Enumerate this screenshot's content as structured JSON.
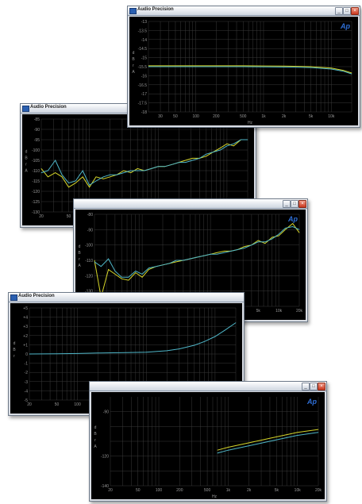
{
  "colors": {
    "background": "#000000",
    "grid": "#3a3a3a",
    "tick_text": "#9a9a9a",
    "series_a": "#d6d62a",
    "series_b": "#4fb6c8",
    "logo": "#2f6fd6"
  },
  "windows": [
    {
      "title": "Audio Precision",
      "show_logo": true,
      "chart_data": {
        "type": "line",
        "ylabel": "d B r A",
        "xlabel": "Hz",
        "xlim": [
          20,
          20000
        ],
        "ylim": [
          -18,
          -13
        ],
        "yticks": [
          -13,
          -13.5,
          -14,
          -14.5,
          -15,
          -15.5,
          -16,
          -16.5,
          -17,
          -17.5,
          -18
        ],
        "ytick_labels": [
          "-13",
          "-13.5",
          "-14",
          "-14.5",
          "-15",
          "-15.5",
          "-16",
          "-16.5",
          "-17",
          "-17.5",
          "-18"
        ],
        "xticks": [
          30,
          50,
          100,
          200,
          500,
          1000,
          2000,
          5000,
          10000
        ],
        "xtick_labels": [
          "30",
          "50",
          "100",
          "200",
          "500",
          "1k",
          "2k",
          "5k",
          "10k"
        ],
        "grid": true,
        "series": [
          {
            "color": "#d6d62a",
            "x": [
              20,
              50,
              100,
              200,
              500,
              1000,
              2000,
              5000,
              10000,
              15000,
              20000
            ],
            "y": [
              -15.45,
              -15.45,
              -15.45,
              -15.45,
              -15.45,
              -15.46,
              -15.47,
              -15.5,
              -15.58,
              -15.7,
              -15.85
            ]
          },
          {
            "color": "#4fb6c8",
            "x": [
              20,
              50,
              100,
              200,
              500,
              1000,
              2000,
              5000,
              10000,
              15000,
              20000
            ],
            "y": [
              -15.5,
              -15.5,
              -15.5,
              -15.5,
              -15.5,
              -15.51,
              -15.52,
              -15.55,
              -15.63,
              -15.75,
              -15.9
            ]
          }
        ]
      }
    },
    {
      "title": "Audio Precision",
      "show_logo": false,
      "chart_data": {
        "type": "line",
        "ylabel": "d B r A",
        "xlabel": "Hz",
        "xlim": [
          20,
          20000
        ],
        "ylim": [
          -130,
          -85
        ],
        "yticks": [
          -85,
          -90,
          -95,
          -100,
          -105,
          -110,
          -115,
          -120,
          -125,
          -130
        ],
        "ytick_labels": [
          "-85",
          "-90",
          "-95",
          "-100",
          "-105",
          "-110",
          "-115",
          "-120",
          "-125",
          "-130"
        ],
        "xticks": [
          20,
          50,
          100,
          200,
          500,
          1000,
          2000,
          5000,
          10000,
          20000
        ],
        "xtick_labels": [
          "20",
          "50",
          "100",
          "200",
          "500",
          "1k",
          "2k",
          "5k",
          "10k",
          "20k"
        ],
        "grid": true,
        "series": [
          {
            "color": "#d6d62a",
            "x": [
              20,
              25,
              32,
              40,
              50,
              63,
              80,
              100,
              125,
              160,
              200,
              250,
              315,
              400,
              500,
              630,
              800,
              1000,
              1250,
              1600,
              2000,
              2500,
              3150,
              4000,
              5000,
              6300,
              8000,
              10000,
              12500,
              16000,
              20000
            ],
            "y": [
              -109,
              -113,
              -111,
              -113,
              -118,
              -116,
              -113,
              -118,
              -113,
              -114,
              -113,
              -112,
              -110,
              -111,
              -109,
              -110,
              -109,
              -108,
              -108,
              -107,
              -106,
              -105,
              -104,
              -104,
              -103,
              -101,
              -99,
              -97,
              -98,
              -95,
              -95
            ]
          },
          {
            "color": "#4fb6c8",
            "x": [
              20,
              25,
              32,
              40,
              50,
              63,
              80,
              100,
              125,
              160,
              200,
              250,
              315,
              400,
              500,
              630,
              800,
              1000,
              1250,
              1600,
              2000,
              2500,
              3150,
              4000,
              5000,
              6300,
              8000,
              10000,
              12500,
              16000,
              20000
            ],
            "y": [
              -111,
              -110,
              -105,
              -112,
              -116,
              -115,
              -110,
              -117,
              -115,
              -113,
              -112,
              -112,
              -111,
              -110,
              -110,
              -110,
              -109,
              -108,
              -108,
              -107,
              -106,
              -106,
              -105,
              -104,
              -102,
              -101,
              -100,
              -98,
              -97,
              -95,
              -95
            ]
          }
        ]
      }
    },
    {
      "title": "",
      "show_logo": true,
      "chart_data": {
        "type": "line",
        "ylabel": "d B r A",
        "xlabel": "Hz",
        "xlim": [
          20,
          20000
        ],
        "ylim": [
          -140,
          -80
        ],
        "yticks": [
          -80,
          -90,
          -100,
          -110,
          -120,
          -130,
          -140
        ],
        "ytick_labels": [
          "-80",
          "-90",
          "-100",
          "-110",
          "-120",
          "-130",
          "-140"
        ],
        "xticks": [
          20,
          50,
          100,
          200,
          500,
          1000,
          2000,
          5000,
          10000,
          20000
        ],
        "xtick_labels": [
          "20",
          "50",
          "100",
          "200",
          "500",
          "1k",
          "2k",
          "5k",
          "10k",
          "20k"
        ],
        "grid": true,
        "series": [
          {
            "color": "#d6d62a",
            "x": [
              20,
              25,
              32,
              40,
              50,
              63,
              80,
              100,
              125,
              160,
              200,
              250,
              315,
              400,
              500,
              630,
              800,
              1000,
              1250,
              1600,
              2000,
              2500,
              3150,
              4000,
              5000,
              6300,
              8000,
              10000,
              12500,
              16000,
              20000
            ],
            "y": [
              -110,
              -134,
              -116,
              -119,
              -122,
              -123,
              -118,
              -121,
              -116,
              -114,
              -113,
              -112,
              -111,
              -110,
              -109,
              -108,
              -107,
              -106,
              -105,
              -104,
              -104,
              -103,
              -101,
              -100,
              -97,
              -99,
              -95,
              -94,
              -90,
              -86,
              -92
            ]
          },
          {
            "color": "#4fb6c8",
            "x": [
              20,
              25,
              32,
              40,
              50,
              63,
              80,
              100,
              125,
              160,
              200,
              250,
              315,
              400,
              500,
              630,
              800,
              1000,
              1250,
              1600,
              2000,
              2500,
              3150,
              4000,
              5000,
              6300,
              8000,
              10000,
              12500,
              16000,
              20000
            ],
            "y": [
              -111,
              -114,
              -109,
              -117,
              -121,
              -121,
              -117,
              -119,
              -115,
              -114,
              -113,
              -112,
              -110,
              -110,
              -109,
              -108,
              -107,
              -106,
              -106,
              -105,
              -104,
              -103,
              -102,
              -100,
              -98,
              -98,
              -96,
              -93,
              -89,
              -88,
              -90
            ]
          }
        ]
      }
    },
    {
      "title": "Audio Precision",
      "show_logo": false,
      "chart_data": {
        "type": "line",
        "ylabel": "d B r",
        "xlabel": "Hz",
        "xlim": [
          20,
          20000
        ],
        "ylim": [
          -5,
          5
        ],
        "yticks": [
          5,
          4,
          3,
          2,
          1,
          0,
          -1,
          -2,
          -3,
          -4,
          -5
        ],
        "ytick_labels": [
          "+5",
          "+4",
          "+3",
          "+2",
          "+1",
          "0",
          "-1",
          "-2",
          "-3",
          "-4",
          "-5"
        ],
        "xticks": [
          20,
          50,
          100,
          200,
          500,
          1000,
          2000,
          5000,
          10000,
          20000
        ],
        "xtick_labels": [
          "20",
          "50",
          "100",
          "200",
          "500",
          "1k",
          "2k",
          "5k",
          "10k",
          "20k"
        ],
        "grid": true,
        "series": [
          {
            "color": "#4fb6c8",
            "x": [
              20,
              50,
              100,
              200,
              500,
              1000,
              2000,
              3000,
              5000,
              7000,
              10000,
              14000,
              20000
            ],
            "y": [
              0,
              0.02,
              0.05,
              0.1,
              0.15,
              0.2,
              0.35,
              0.55,
              0.95,
              1.35,
              1.9,
              2.6,
              3.4
            ]
          }
        ]
      }
    },
    {
      "title": "",
      "show_logo": true,
      "chart_data": {
        "type": "line",
        "ylabel": "d B r A",
        "xlabel": "Hz",
        "xlim": [
          20,
          20000
        ],
        "ylim": [
          -140,
          -80
        ],
        "yticks": [
          -90,
          -100,
          -110,
          -120,
          -130,
          -140
        ],
        "ytick_labels": [
          "-90",
          "",
          "",
          "-120",
          "",
          "-140"
        ],
        "xticks": [
          20,
          50,
          100,
          200,
          500,
          1000,
          2000,
          5000,
          10000,
          20000
        ],
        "xtick_labels": [
          "20",
          "50",
          "100",
          "200",
          "500",
          "1k",
          "2k",
          "5k",
          "10k",
          "20k"
        ],
        "grid": true,
        "series": [
          {
            "color": "#d6d62a",
            "x": [
              700,
              1000,
              2000,
              5000,
              10000,
              20000
            ],
            "y": [
              -116,
              -114,
              -111,
              -107,
              -104,
              -102
            ]
          },
          {
            "color": "#4fb6c8",
            "x": [
              700,
              1000,
              2000,
              5000,
              10000,
              20000
            ],
            "y": [
              -118,
              -116,
              -113,
              -109,
              -106,
              -104
            ]
          }
        ]
      }
    }
  ]
}
